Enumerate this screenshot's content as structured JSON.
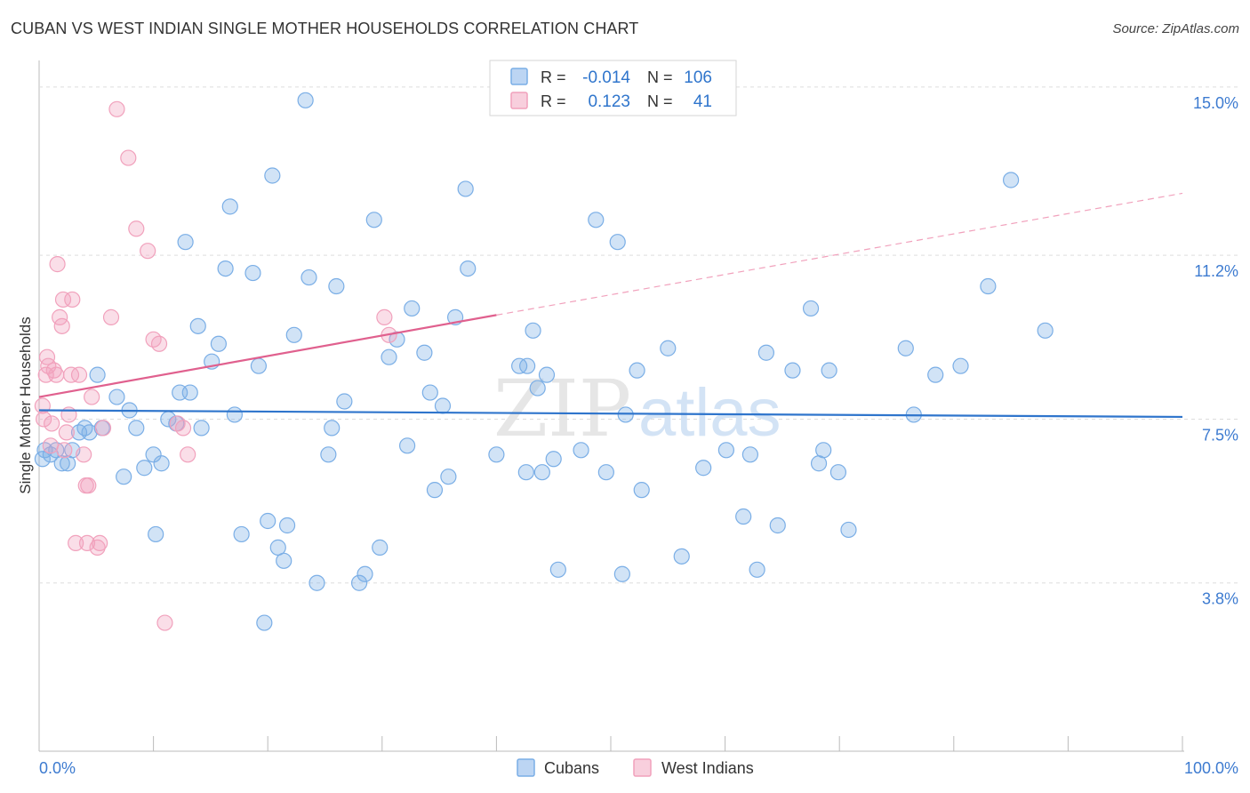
{
  "header": {
    "title": "CUBAN VS WEST INDIAN SINGLE MOTHER HOUSEHOLDS CORRELATION CHART",
    "source": "Source: ZipAtlas.com"
  },
  "watermark": {
    "zip": "ZIP",
    "atlas": "atlas"
  },
  "legend_box": {
    "rows": [
      {
        "r_label": "R =",
        "r_value": "-0.014",
        "n_label": "N =",
        "n_value": "106",
        "color": "#7aaee6"
      },
      {
        "r_label": "R =",
        "r_value": "0.123",
        "n_label": "N =",
        "n_value": "41",
        "color": "#f1a1bc"
      }
    ]
  },
  "chart_data": {
    "type": "scatter",
    "title": "CUBAN VS WEST INDIAN SINGLE MOTHER HOUSEHOLDS CORRELATION CHART",
    "xlabel": "",
    "ylabel": "Single Mother Households",
    "xlim": [
      0,
      100
    ],
    "ylim": [
      0,
      15.6
    ],
    "x_tick_labels": [
      "0.0%",
      "100.0%"
    ],
    "y_ticks": [
      3.8,
      7.5,
      11.2,
      15.0
    ],
    "y_tick_labels": [
      "3.8%",
      "7.5%",
      "11.2%",
      "15.0%"
    ],
    "grid": true,
    "legend_placement": "bottom-center",
    "series": [
      {
        "name": "Cubans",
        "color": "#7aaee6",
        "trend": {
          "x": [
            0,
            100
          ],
          "y": [
            7.7,
            7.55
          ],
          "color": "#2f75cc"
        },
        "points": [
          [
            0.3,
            6.6
          ],
          [
            0.5,
            6.8
          ],
          [
            1.0,
            6.7
          ],
          [
            1.5,
            6.8
          ],
          [
            2.0,
            6.5
          ],
          [
            2.5,
            6.5
          ],
          [
            2.9,
            6.8
          ],
          [
            3.5,
            7.2
          ],
          [
            4.0,
            7.3
          ],
          [
            4.4,
            7.2
          ],
          [
            5.1,
            8.5
          ],
          [
            5.5,
            7.3
          ],
          [
            6.8,
            8.0
          ],
          [
            7.4,
            6.2
          ],
          [
            7.9,
            7.7
          ],
          [
            8.5,
            7.3
          ],
          [
            9.2,
            6.4
          ],
          [
            10.0,
            6.7
          ],
          [
            10.2,
            4.9
          ],
          [
            10.7,
            6.5
          ],
          [
            11.3,
            7.5
          ],
          [
            12.0,
            7.4
          ],
          [
            12.3,
            8.1
          ],
          [
            12.8,
            11.5
          ],
          [
            13.2,
            8.1
          ],
          [
            13.9,
            9.6
          ],
          [
            14.2,
            7.3
          ],
          [
            15.1,
            8.8
          ],
          [
            15.7,
            9.2
          ],
          [
            16.3,
            10.9
          ],
          [
            16.7,
            12.3
          ],
          [
            17.1,
            7.6
          ],
          [
            17.7,
            4.9
          ],
          [
            18.7,
            10.8
          ],
          [
            19.2,
            8.7
          ],
          [
            19.7,
            2.9
          ],
          [
            20.0,
            5.2
          ],
          [
            20.4,
            13.0
          ],
          [
            20.9,
            4.6
          ],
          [
            21.4,
            4.3
          ],
          [
            21.7,
            5.1
          ],
          [
            22.3,
            9.4
          ],
          [
            23.3,
            14.7
          ],
          [
            23.6,
            10.7
          ],
          [
            24.3,
            3.8
          ],
          [
            25.3,
            6.7
          ],
          [
            25.6,
            7.3
          ],
          [
            26.0,
            10.5
          ],
          [
            26.7,
            7.9
          ],
          [
            28.0,
            3.8
          ],
          [
            28.5,
            4.0
          ],
          [
            29.3,
            12.0
          ],
          [
            29.8,
            4.6
          ],
          [
            30.6,
            8.9
          ],
          [
            31.3,
            9.3
          ],
          [
            32.2,
            6.9
          ],
          [
            32.6,
            10.0
          ],
          [
            33.7,
            9.0
          ],
          [
            34.2,
            8.1
          ],
          [
            34.6,
            5.9
          ],
          [
            35.3,
            7.8
          ],
          [
            35.8,
            6.2
          ],
          [
            36.4,
            9.8
          ],
          [
            37.3,
            12.7
          ],
          [
            37.5,
            10.9
          ],
          [
            40.0,
            6.7
          ],
          [
            42.0,
            8.7
          ],
          [
            42.6,
            6.3
          ],
          [
            42.7,
            8.7
          ],
          [
            43.2,
            9.5
          ],
          [
            43.6,
            8.2
          ],
          [
            44.0,
            6.3
          ],
          [
            44.4,
            8.5
          ],
          [
            45.0,
            6.6
          ],
          [
            45.4,
            4.1
          ],
          [
            47.4,
            6.8
          ],
          [
            48.7,
            12.0
          ],
          [
            49.6,
            6.3
          ],
          [
            50.6,
            11.5
          ],
          [
            51.0,
            4.0
          ],
          [
            51.3,
            7.6
          ],
          [
            52.3,
            8.6
          ],
          [
            52.7,
            5.9
          ],
          [
            55.0,
            9.1
          ],
          [
            56.2,
            4.4
          ],
          [
            58.1,
            6.4
          ],
          [
            60.1,
            6.8
          ],
          [
            61.6,
            5.3
          ],
          [
            62.2,
            6.7
          ],
          [
            62.8,
            4.1
          ],
          [
            63.6,
            9.0
          ],
          [
            64.6,
            5.1
          ],
          [
            65.9,
            8.6
          ],
          [
            67.5,
            10.0
          ],
          [
            68.2,
            6.5
          ],
          [
            68.6,
            6.8
          ],
          [
            69.1,
            8.6
          ],
          [
            69.9,
            6.3
          ],
          [
            70.8,
            5.0
          ],
          [
            75.8,
            9.1
          ],
          [
            76.5,
            7.6
          ],
          [
            78.4,
            8.5
          ],
          [
            80.6,
            8.7
          ],
          [
            83.0,
            10.5
          ],
          [
            85.0,
            12.9
          ],
          [
            88.0,
            9.5
          ]
        ]
      },
      {
        "name": "West Indians",
        "color": "#f1a1bc",
        "trend": {
          "x": [
            0,
            40
          ],
          "y": [
            8.0,
            9.85
          ],
          "color": "#e0608e",
          "extended": {
            "x": [
              40,
              100
            ],
            "y": [
              9.85,
              12.6
            ]
          }
        },
        "points": [
          [
            0.3,
            7.8
          ],
          [
            0.4,
            7.5
          ],
          [
            0.6,
            8.5
          ],
          [
            0.7,
            8.9
          ],
          [
            0.8,
            8.7
          ],
          [
            1.0,
            6.9
          ],
          [
            1.1,
            7.4
          ],
          [
            1.3,
            8.6
          ],
          [
            1.5,
            8.5
          ],
          [
            1.6,
            11.0
          ],
          [
            1.8,
            9.8
          ],
          [
            2.0,
            9.6
          ],
          [
            2.1,
            10.2
          ],
          [
            2.2,
            6.8
          ],
          [
            2.4,
            7.2
          ],
          [
            2.6,
            7.6
          ],
          [
            2.8,
            8.5
          ],
          [
            2.9,
            10.2
          ],
          [
            3.2,
            4.7
          ],
          [
            3.5,
            8.5
          ],
          [
            3.9,
            6.7
          ],
          [
            4.1,
            6.0
          ],
          [
            4.2,
            4.7
          ],
          [
            4.3,
            6.0
          ],
          [
            4.6,
            8.0
          ],
          [
            5.1,
            4.6
          ],
          [
            5.3,
            4.7
          ],
          [
            5.6,
            7.3
          ],
          [
            6.3,
            9.8
          ],
          [
            6.8,
            14.5
          ],
          [
            7.8,
            13.4
          ],
          [
            8.5,
            11.8
          ],
          [
            9.5,
            11.3
          ],
          [
            10.0,
            9.3
          ],
          [
            10.5,
            9.2
          ],
          [
            11.0,
            2.9
          ],
          [
            12.1,
            7.4
          ],
          [
            12.6,
            7.3
          ],
          [
            13.0,
            6.7
          ],
          [
            30.2,
            9.8
          ],
          [
            30.6,
            9.4
          ]
        ]
      }
    ]
  },
  "bottom_legend": {
    "items": [
      {
        "label": "Cubans",
        "color": "#7aaee6"
      },
      {
        "label": "West Indians",
        "color": "#f1a1bc"
      }
    ]
  }
}
